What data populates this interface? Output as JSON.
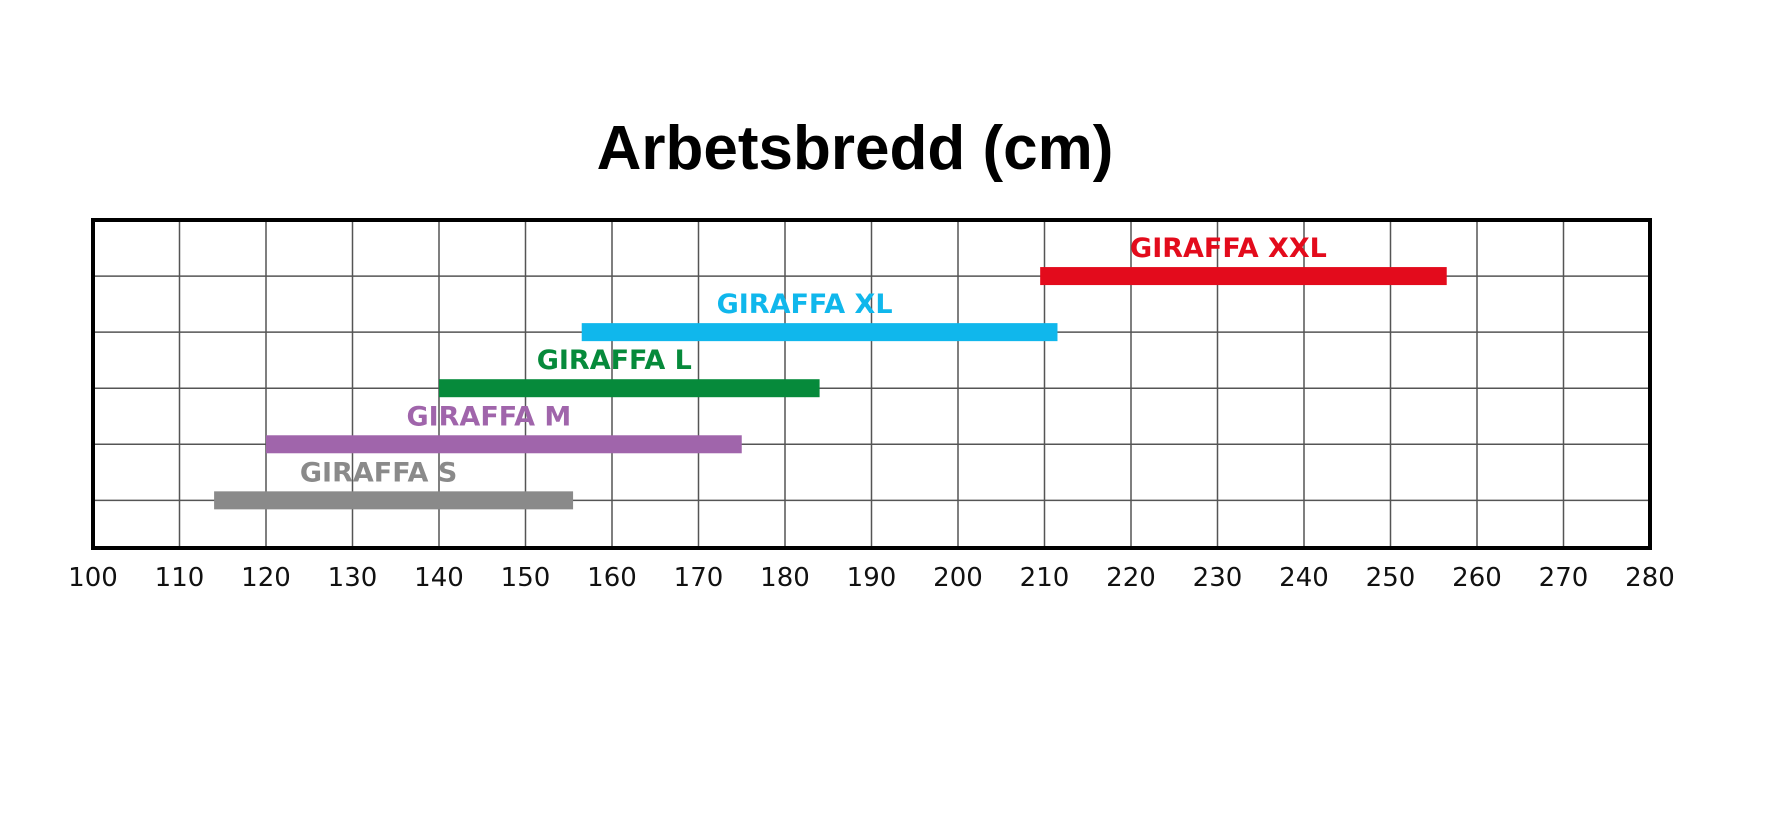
{
  "chart_data": {
    "type": "bar",
    "orientation": "horizontal-range",
    "title": "Arbetsbredd (cm)",
    "xlabel": "",
    "ylabel": "",
    "xlim": [
      100,
      280
    ],
    "x_ticks": [
      "100",
      "110",
      "120",
      "130",
      "140",
      "150",
      "160",
      "170",
      "180",
      "190",
      "200",
      "210",
      "220",
      "230",
      "240",
      "250",
      "260",
      "270",
      "280"
    ],
    "grid": true,
    "series": [
      {
        "name": "GIRAFFA XXL",
        "start": 209.5,
        "end": 256.5,
        "color": "#e30b1c"
      },
      {
        "name": "GIRAFFA XL",
        "start": 156.5,
        "end": 211.5,
        "color": "#10b7ec"
      },
      {
        "name": "GIRAFFA L",
        "start": 140,
        "end": 184,
        "color": "#068a3b"
      },
      {
        "name": "GIRAFFA M",
        "start": 120,
        "end": 175,
        "color": "#a065ab"
      },
      {
        "name": "GIRAFFA S",
        "start": 114,
        "end": 155.5,
        "color": "#8a8a8a"
      }
    ]
  }
}
